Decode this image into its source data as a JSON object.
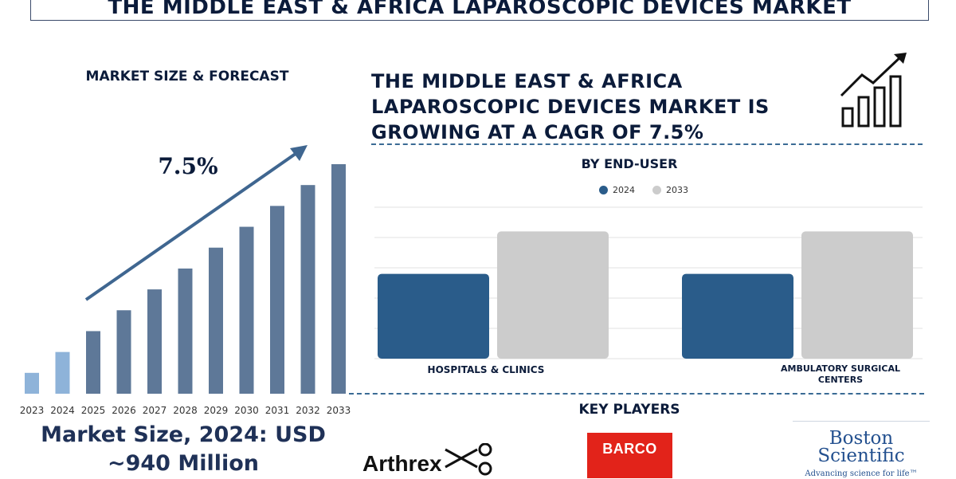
{
  "page": {
    "title": "THE MIDDLE EAST & AFRICA LAPAROSCOPIC DEVICES MARKET",
    "left_heading": "MARKET SIZE & FORECAST",
    "market_size_line1": "Market Size, 2024: USD",
    "market_size_line2": "~940 Million",
    "headline_line1": "THE MIDDLE EAST & AFRICA",
    "headline_line2": "LAPAROSCOPIC DEVICES MARKET IS",
    "headline_line3": "GROWING AT A CAGR OF 7.5%",
    "right_heading": "BY END-USER",
    "key_players_heading": "KEY PLAYERS",
    "icons": [
      "growth-chart-icon",
      "scissors-icon"
    ]
  },
  "colors": {
    "historic_bar": "#8eb3d9",
    "forecast_bar": "#5e7898",
    "arrow": "#3f6690",
    "series_2024": "#2a5c8a",
    "series_2033": "#cccccc",
    "barco_red": "#e2231a",
    "boston_blue": "#23508f"
  },
  "logos": {
    "arthrex": "Arthrex",
    "barco": "BARCO",
    "boston_line1": "Boston",
    "boston_line2": "Scientific",
    "boston_tagline": "Advancing science for life™"
  },
  "chart_data": [
    {
      "type": "bar",
      "categories": [
        "2023",
        "2024",
        "2025",
        "2026",
        "2027",
        "2028",
        "2029",
        "2030",
        "2031",
        "2032",
        "2033"
      ],
      "values": [
        1,
        2,
        3,
        4,
        5,
        6,
        7,
        8,
        9,
        10,
        11
      ],
      "highlighted_categories": [
        "2023",
        "2024"
      ],
      "annotation": "7.5%",
      "grid": false,
      "legend": "none"
    },
    {
      "type": "bar",
      "categories": [
        "HOSPITALS & CLINICS",
        "AMBULATORY SURGICAL CENTERS"
      ],
      "series": [
        {
          "name": "2024",
          "values": [
            2.8,
            2.8
          ]
        },
        {
          "name": "2033",
          "values": [
            4.2,
            4.2
          ]
        }
      ],
      "ylim": [
        0,
        5
      ],
      "grid": true,
      "legend": "top-center"
    }
  ]
}
